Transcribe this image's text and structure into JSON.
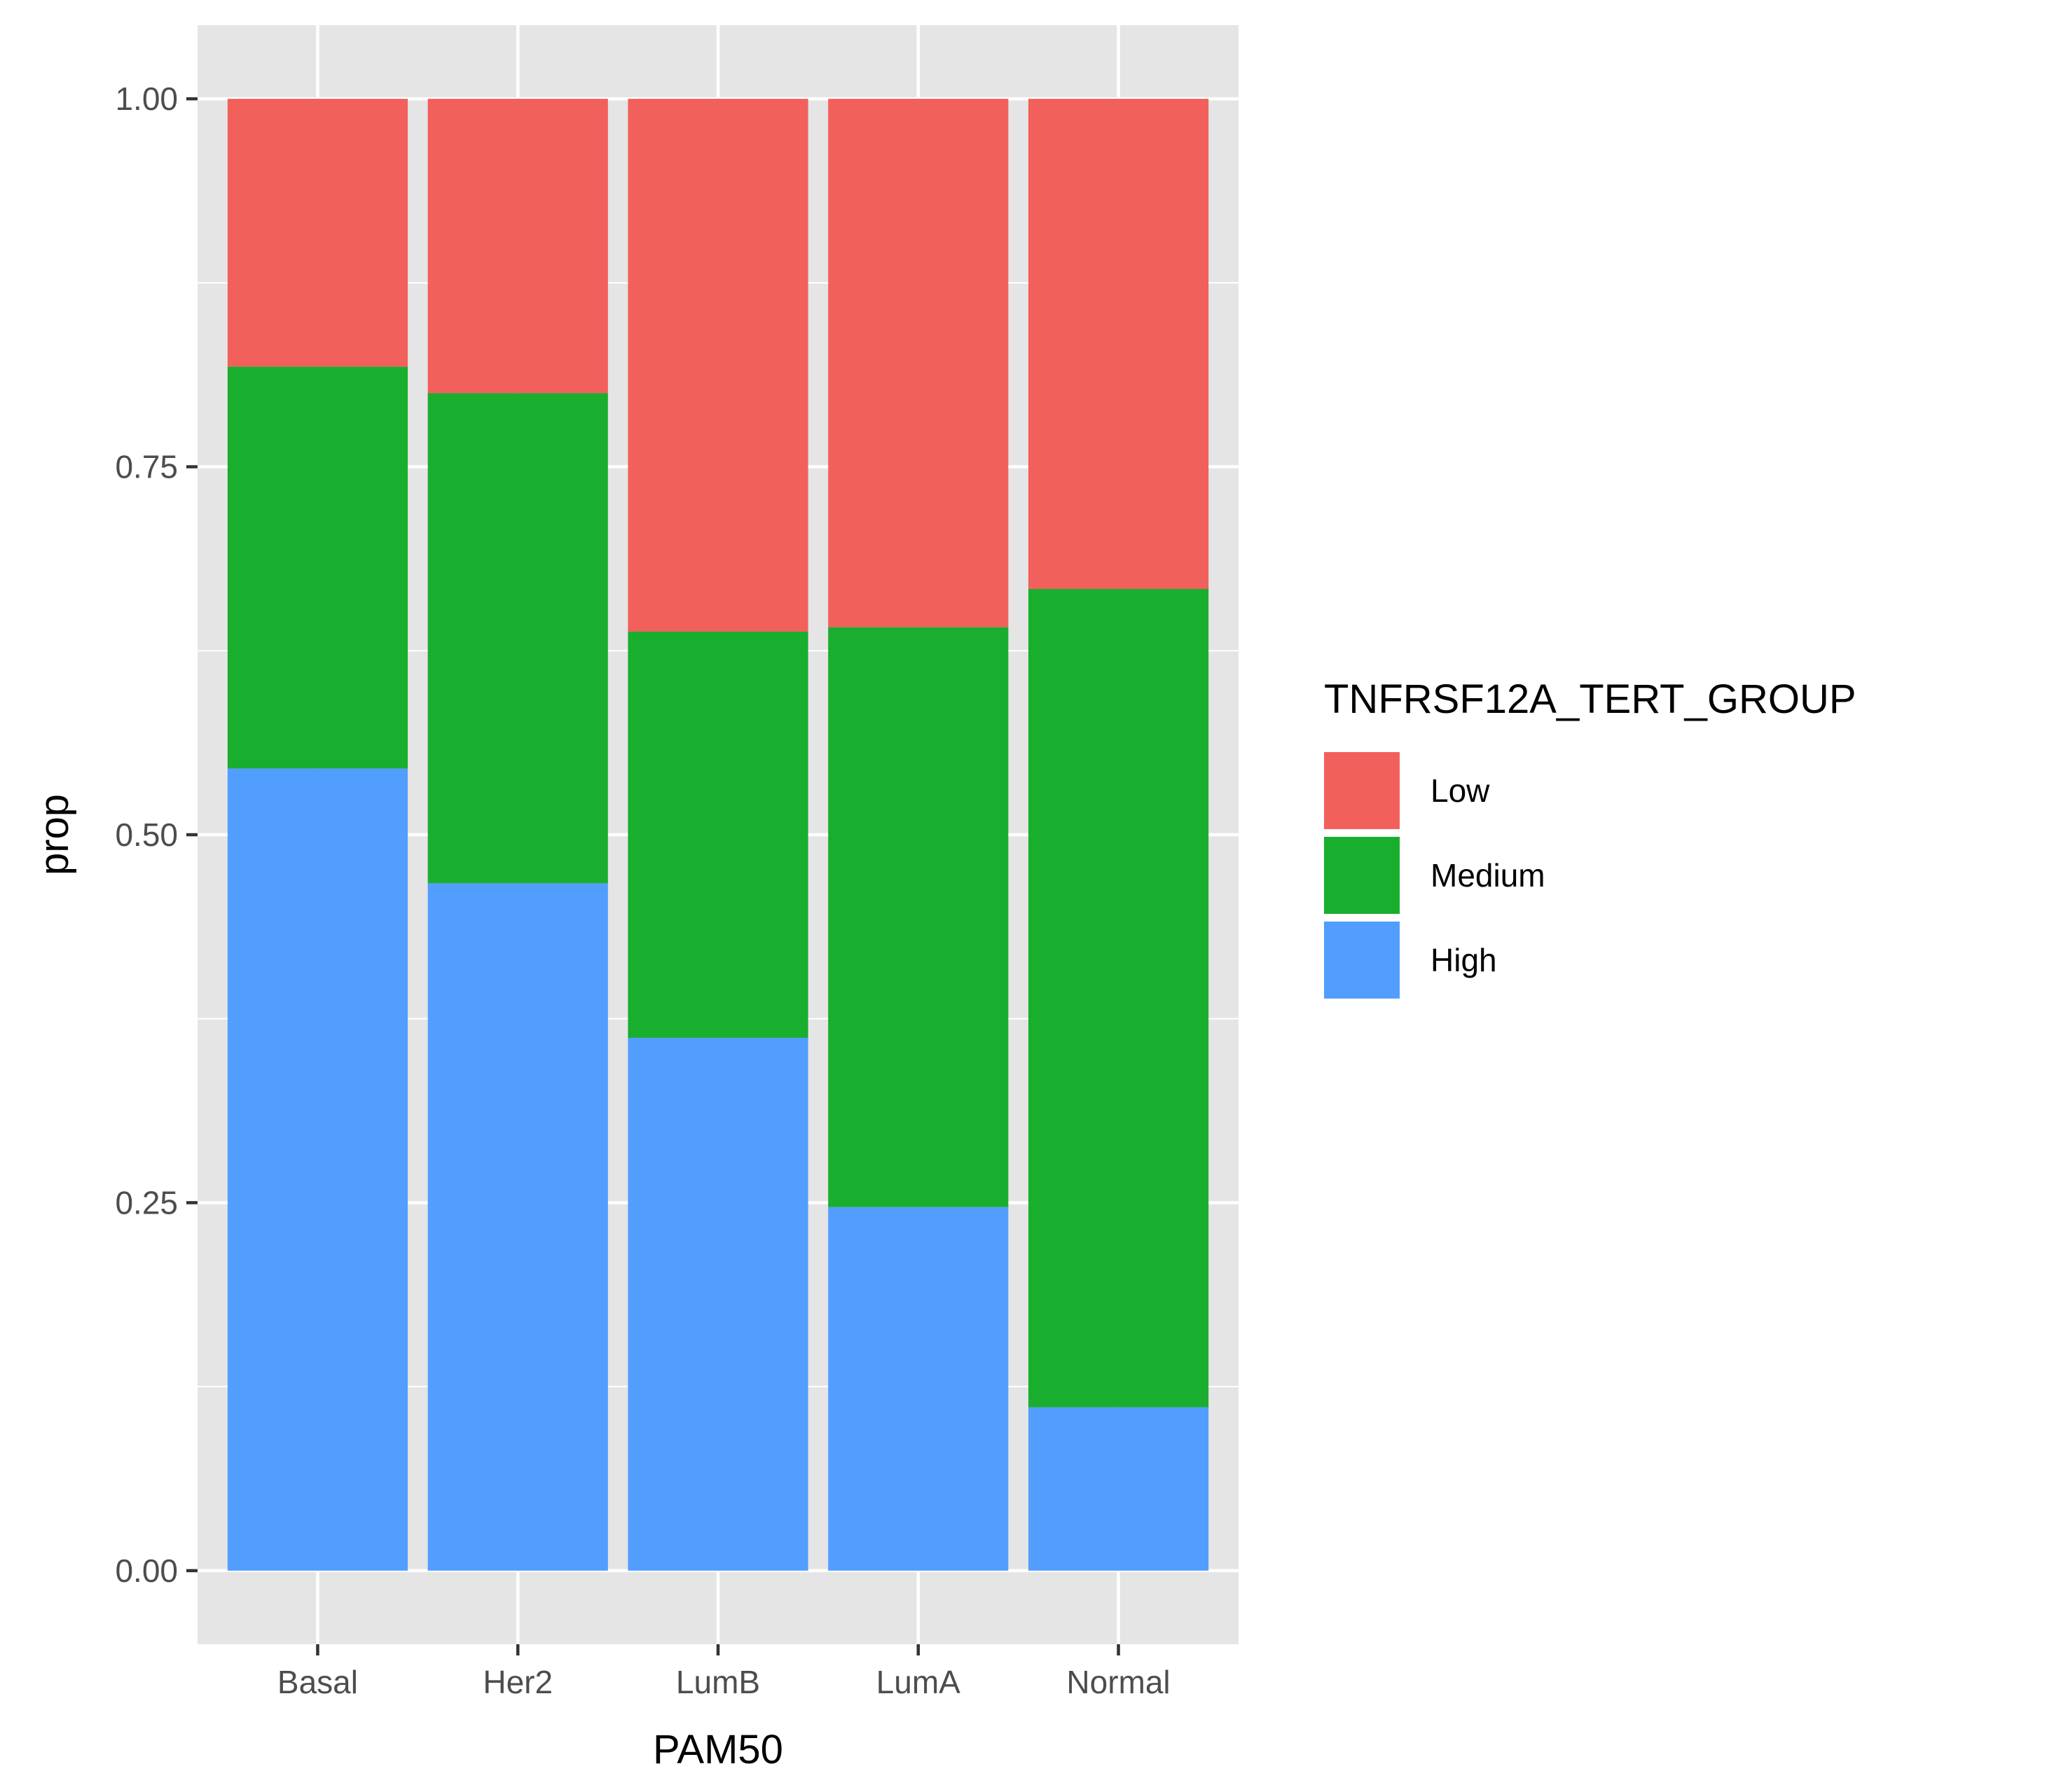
{
  "chart_data": {
    "type": "bar",
    "stacked": true,
    "categories": [
      "Basal",
      "Her2",
      "LumB",
      "LumA",
      "Normal"
    ],
    "series": [
      {
        "name": "High",
        "color": "#529EFF",
        "values": [
          0.545,
          0.467,
          0.362,
          0.247,
          0.111
        ]
      },
      {
        "name": "Medium",
        "color": "#1AAE2F",
        "values": [
          0.273,
          0.333,
          0.276,
          0.394,
          0.556
        ]
      },
      {
        "name": "Low",
        "color": "#F2605C",
        "values": [
          0.182,
          0.2,
          0.362,
          0.359,
          0.333
        ]
      }
    ],
    "xlabel": "PAM50",
    "ylabel": "prop",
    "ylim": [
      -0.05,
      1.05
    ],
    "yticks": [
      0.0,
      0.25,
      0.5,
      0.75,
      1.0
    ],
    "ytick_labels": [
      "0.00",
      "0.25",
      "0.50",
      "0.75",
      "1.00"
    ],
    "grid": true,
    "legend": {
      "title": "TNFRSF12A_TERT_GROUP",
      "position": "right",
      "order": [
        "Low",
        "Medium",
        "High"
      ]
    },
    "colors": {
      "panel": "#E5E5E5",
      "grid": "#FFFFFF",
      "tick": "#333333"
    }
  }
}
